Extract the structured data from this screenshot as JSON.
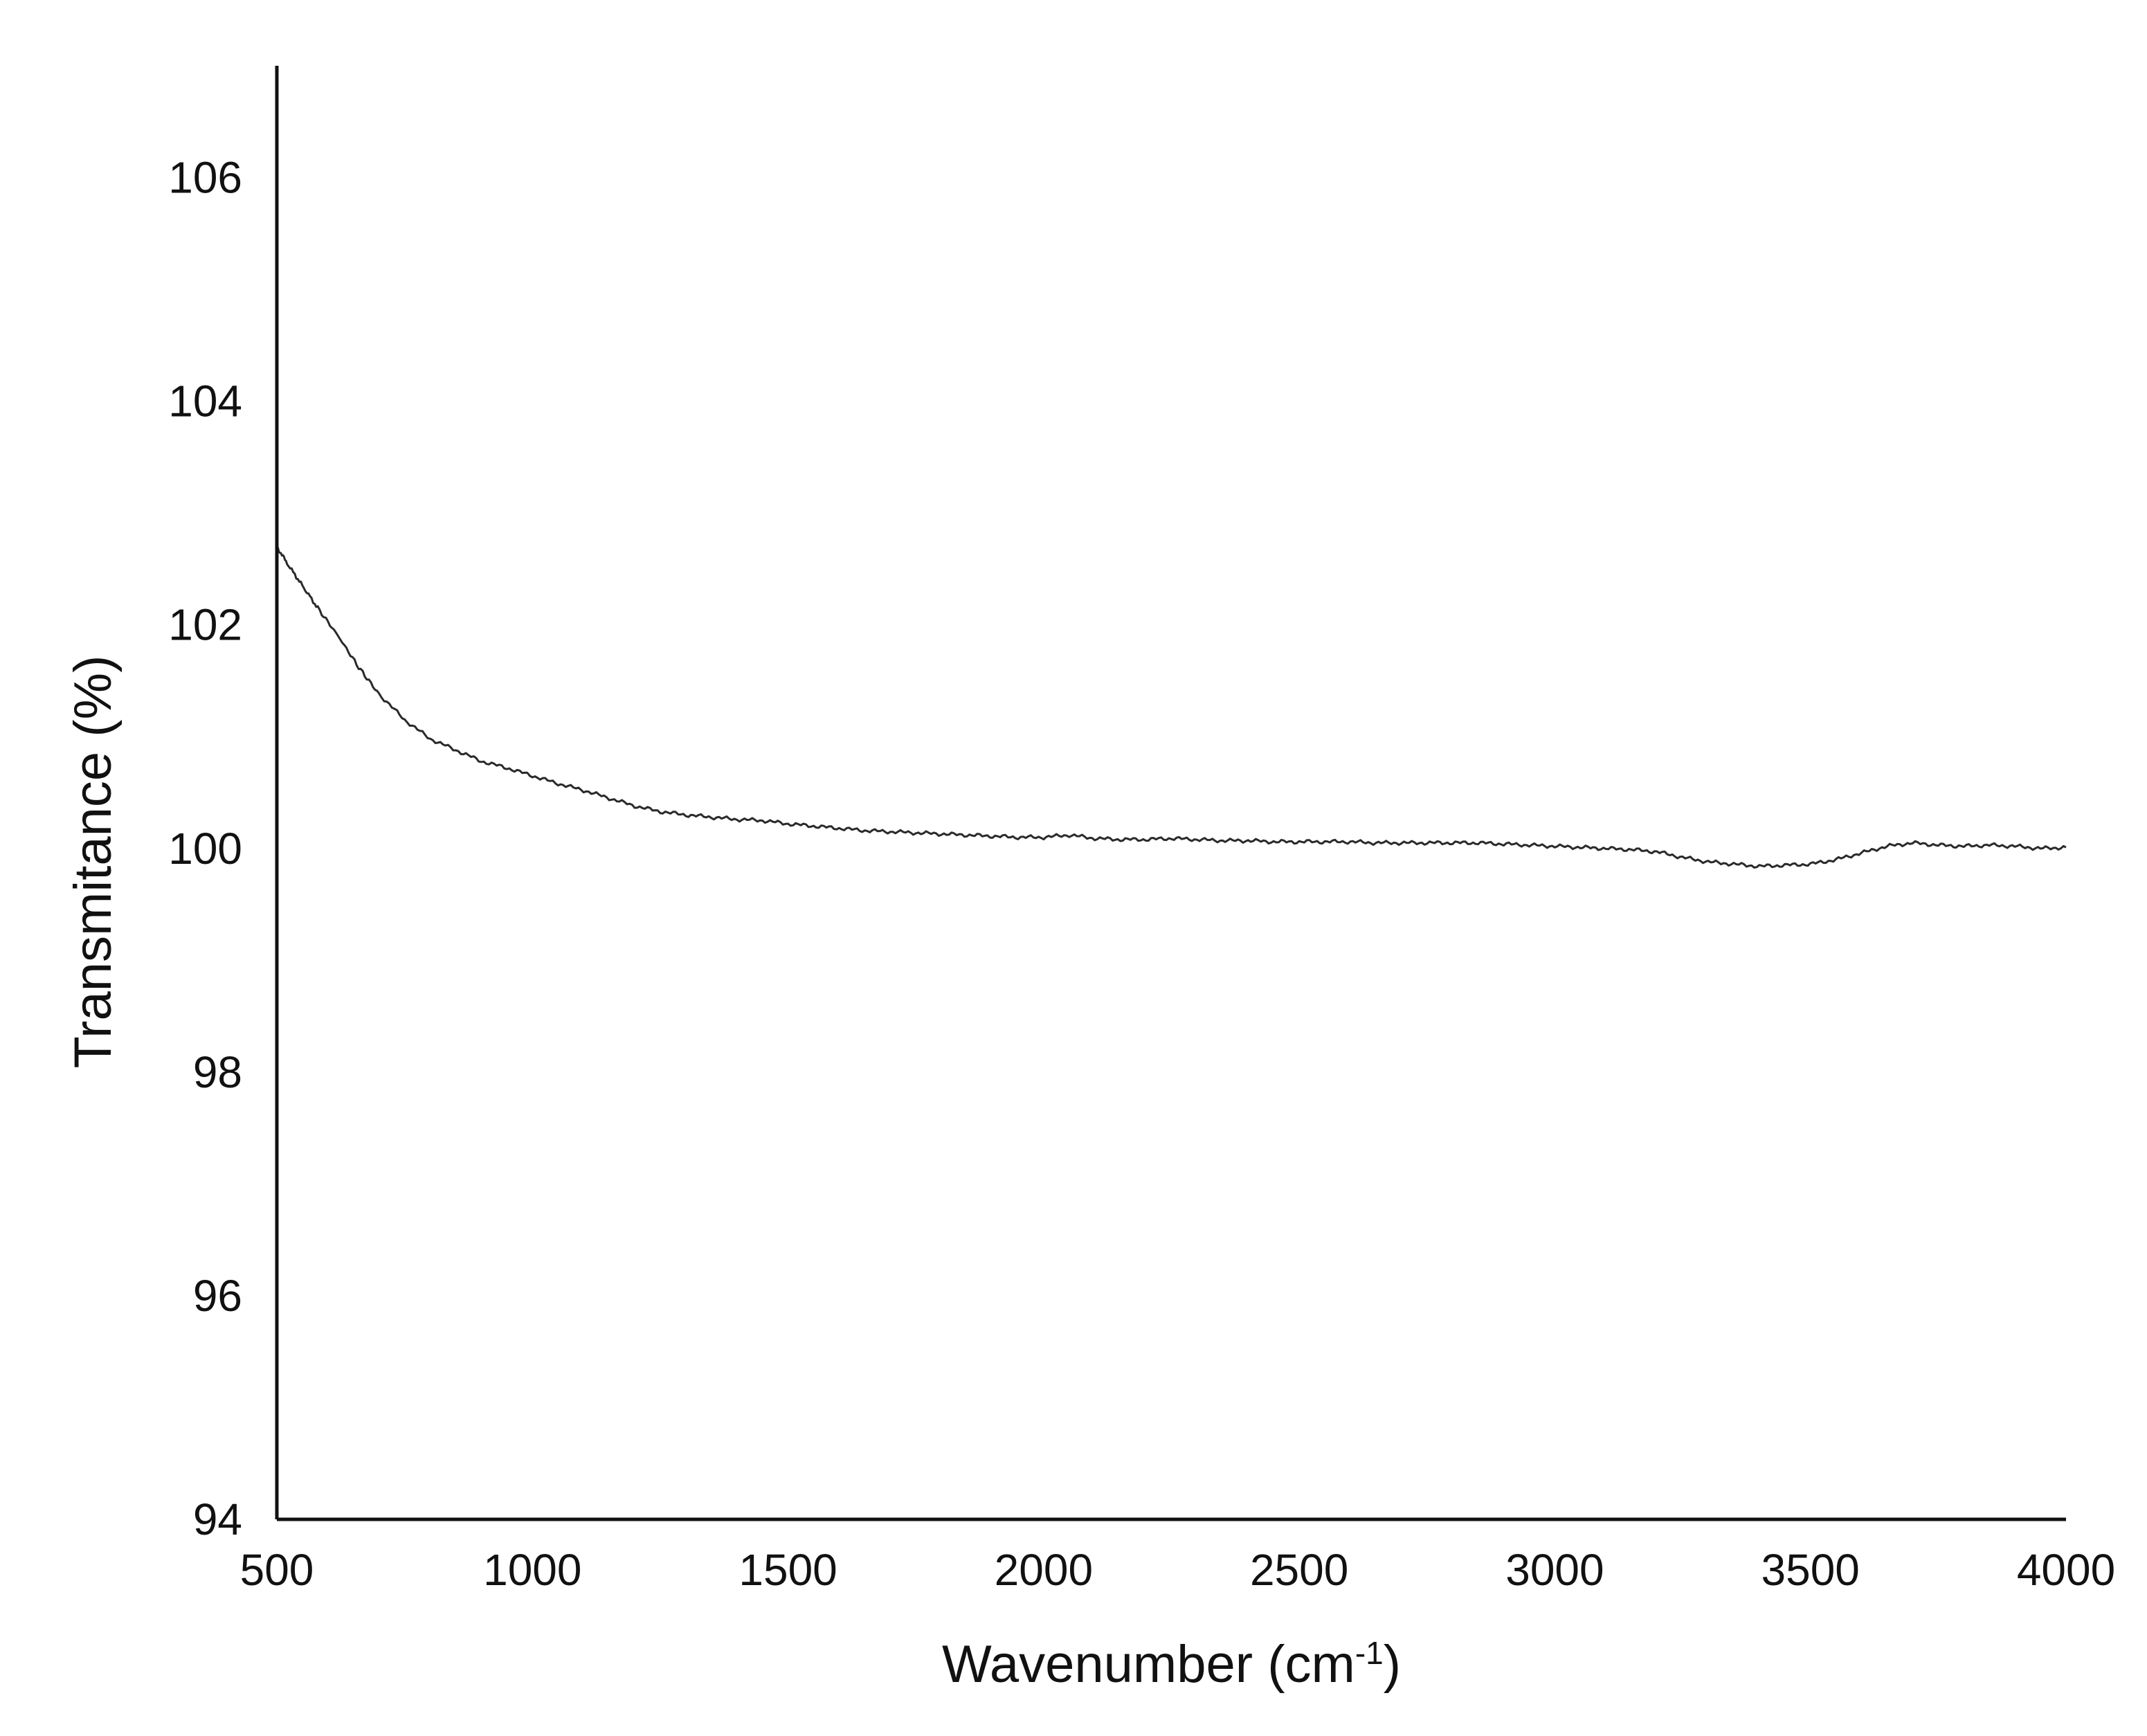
{
  "chart_data": {
    "type": "line",
    "title": "",
    "xlabel": {
      "main": "Wavenumber (cm",
      "sup": "-1",
      "end": ")"
    },
    "ylabel": "Transmitance (%)",
    "xlim": [
      500,
      4000
    ],
    "ylim": [
      94,
      107
    ],
    "xticks": [
      "500",
      "1000",
      "1500",
      "2000",
      "2500",
      "3000",
      "3500",
      "4000"
    ],
    "yticks": [
      "94",
      "96",
      "98",
      "100",
      "102",
      "104",
      "106"
    ],
    "grid": false,
    "legend": "none",
    "line_color": "#2a2a2a",
    "axis_color": "#111111",
    "series": [
      {
        "x": [
          500,
          520,
          550,
          580,
          620,
          660,
          700,
          750,
          800,
          850,
          900,
          950,
          1000,
          1050,
          1100,
          1150,
          1200,
          1250,
          1300,
          1350,
          1400,
          1450,
          1500,
          1550,
          1600,
          1650,
          1700,
          1750,
          1800,
          1850,
          1900,
          1950,
          2000,
          2050,
          2100,
          2150,
          2200,
          2250,
          2300,
          2350,
          2400,
          2450,
          2500,
          2550,
          2600,
          2650,
          2700,
          2750,
          2800,
          2850,
          2900,
          2950,
          3000,
          3050,
          3100,
          3150,
          3200,
          3250,
          3300,
          3350,
          3400,
          3450,
          3500,
          3550,
          3600,
          3650,
          3700,
          3750,
          3800,
          3850,
          3900,
          3950,
          4000
        ],
        "values": [
          102.7,
          102.55,
          102.35,
          102.15,
          101.9,
          101.62,
          101.38,
          101.15,
          100.98,
          100.88,
          100.78,
          100.72,
          100.65,
          100.58,
          100.52,
          100.45,
          100.38,
          100.33,
          100.3,
          100.28,
          100.26,
          100.25,
          100.22,
          100.2,
          100.18,
          100.16,
          100.15,
          100.14,
          100.13,
          100.12,
          100.11,
          100.1,
          100.1,
          100.12,
          100.09,
          100.08,
          100.08,
          100.09,
          100.08,
          100.07,
          100.07,
          100.06,
          100.06,
          100.06,
          100.06,
          100.05,
          100.05,
          100.05,
          100.05,
          100.05,
          100.04,
          100.03,
          100.02,
          100.01,
          100.0,
          99.99,
          99.97,
          99.92,
          99.88,
          99.86,
          99.84,
          99.85,
          99.86,
          99.9,
          99.96,
          100.02,
          100.05,
          100.03,
          100.02,
          100.03,
          100.02,
          100.0,
          100.01
        ]
      }
    ]
  }
}
